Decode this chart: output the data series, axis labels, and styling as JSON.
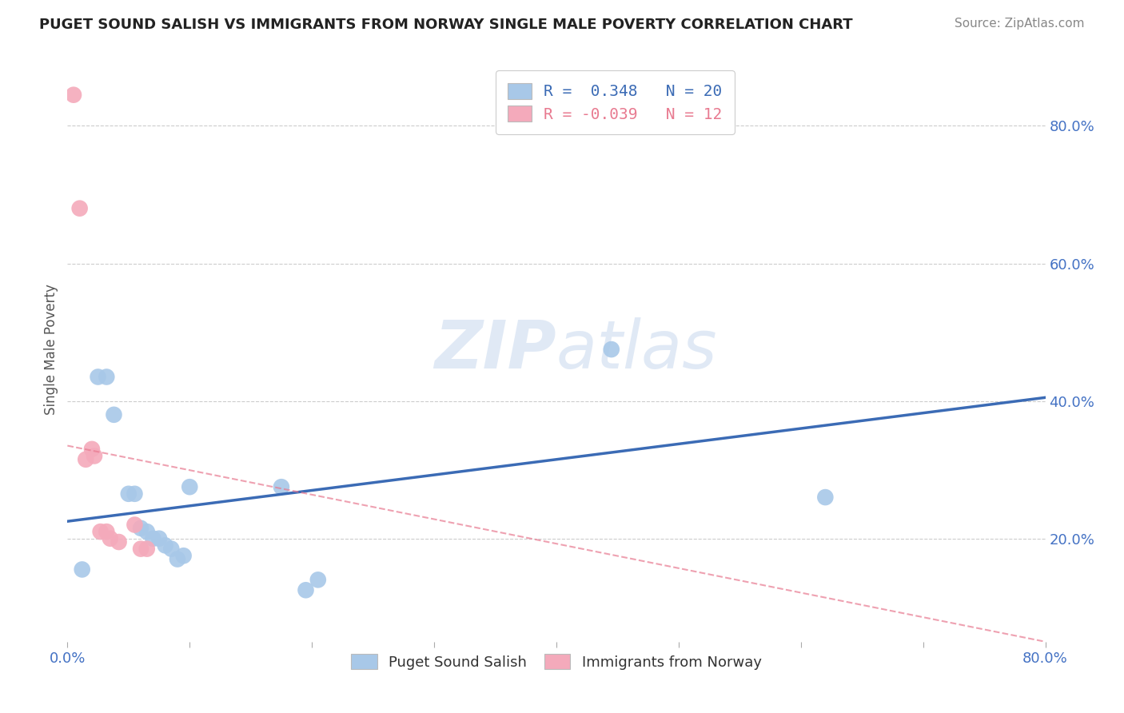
{
  "title": "PUGET SOUND SALISH VS IMMIGRANTS FROM NORWAY SINGLE MALE POVERTY CORRELATION CHART",
  "source": "Source: ZipAtlas.com",
  "ylabel": "Single Male Poverty",
  "watermark_part1": "ZIP",
  "watermark_part2": "atlas",
  "xlim": [
    0.0,
    0.8
  ],
  "ylim": [
    0.05,
    0.9
  ],
  "x_ticks": [
    0.0,
    0.1,
    0.2,
    0.3,
    0.4,
    0.5,
    0.6,
    0.7,
    0.8
  ],
  "x_tick_labels_show": [
    "0.0%",
    "",
    "",
    "",
    "",
    "",
    "",
    "",
    "80.0%"
  ],
  "y_ticks_right": [
    0.2,
    0.4,
    0.6,
    0.8
  ],
  "y_tick_labels_right": [
    "20.0%",
    "40.0%",
    "60.0%",
    "80.0%"
  ],
  "blue_R": 0.348,
  "blue_N": 20,
  "pink_R": -0.039,
  "pink_N": 12,
  "blue_color": "#A8C8E8",
  "pink_color": "#F4AABB",
  "blue_line_color": "#3B6BB5",
  "pink_line_color": "#E87A90",
  "legend_label_blue": "Puget Sound Salish",
  "legend_label_pink": "Immigrants from Norway",
  "blue_scatter_x": [
    0.012,
    0.025,
    0.032,
    0.038,
    0.05,
    0.055,
    0.06,
    0.065,
    0.07,
    0.075,
    0.08,
    0.085,
    0.09,
    0.095,
    0.1,
    0.175,
    0.195,
    0.205,
    0.445,
    0.62
  ],
  "blue_scatter_y": [
    0.155,
    0.435,
    0.435,
    0.38,
    0.265,
    0.265,
    0.215,
    0.21,
    0.2,
    0.2,
    0.19,
    0.185,
    0.17,
    0.175,
    0.275,
    0.275,
    0.125,
    0.14,
    0.475,
    0.26
  ],
  "pink_scatter_x": [
    0.005,
    0.01,
    0.015,
    0.02,
    0.022,
    0.027,
    0.032,
    0.035,
    0.042,
    0.055,
    0.06,
    0.065
  ],
  "pink_scatter_y": [
    0.845,
    0.68,
    0.315,
    0.33,
    0.32,
    0.21,
    0.21,
    0.2,
    0.195,
    0.22,
    0.185,
    0.185
  ],
  "blue_trend_x": [
    0.0,
    0.8
  ],
  "blue_trend_y": [
    0.225,
    0.405
  ],
  "pink_trend_x": [
    0.0,
    0.25
  ],
  "pink_trend_y": [
    0.335,
    0.245
  ]
}
